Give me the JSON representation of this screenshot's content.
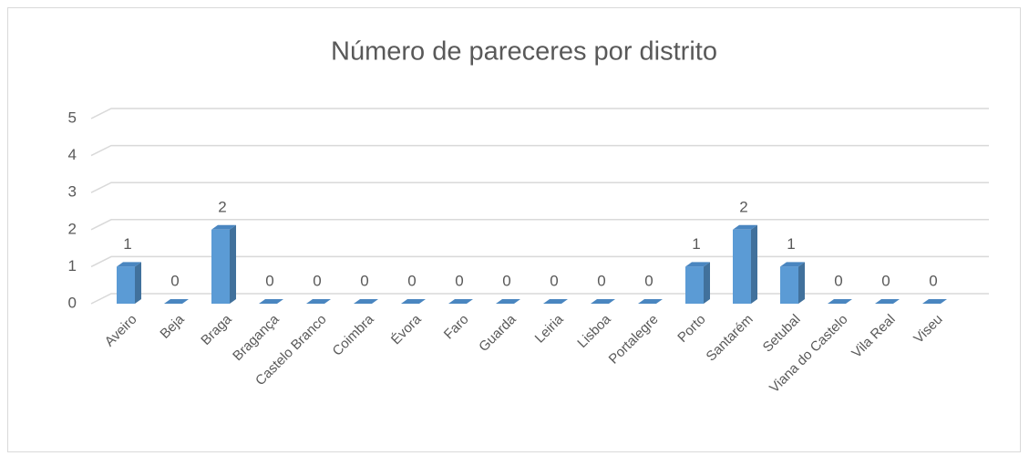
{
  "chart_data": {
    "type": "bar",
    "title": "Número de pareceres por distrito",
    "categories": [
      "Aveiro",
      "Beja",
      "Braga",
      "Bragança",
      "Castelo Branco",
      "Coimbra",
      "Évora",
      "Faro",
      "Guarda",
      "Leiria",
      "Lisboa",
      "Portalegre",
      "Porto",
      "Santarém",
      "Setubal",
      "Viana do Castelo",
      "Vila Real",
      "Viseu"
    ],
    "values": [
      1,
      0,
      2,
      0,
      0,
      0,
      0,
      0,
      0,
      0,
      0,
      0,
      1,
      2,
      1,
      0,
      0,
      0
    ],
    "color": "#5b9bd5",
    "ylim": [
      0,
      5
    ],
    "yticks": [
      0,
      1,
      2,
      3,
      4,
      5
    ],
    "grid": true
  }
}
